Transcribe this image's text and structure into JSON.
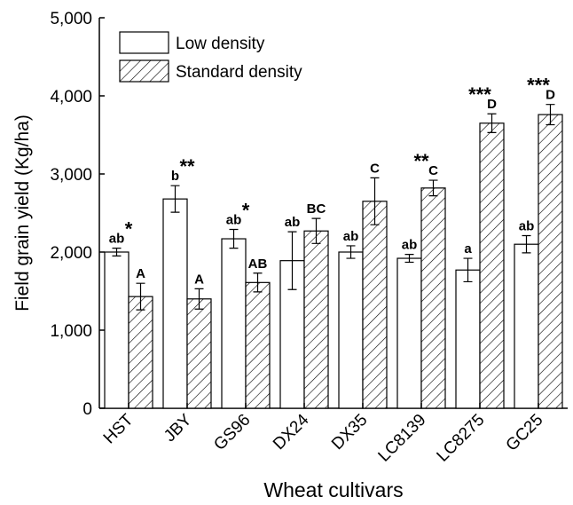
{
  "chart_data": {
    "type": "bar",
    "y_label": "Field grain yield (Kg/ha)",
    "x_label": "Wheat cultivars",
    "categories": [
      "HST",
      "JBY",
      "GS96",
      "DX24",
      "DX35",
      "LC8139",
      "LC8275",
      "GC25"
    ],
    "series": [
      {
        "name": "Low density",
        "color": "#ffffff",
        "hatch": false,
        "values": [
          2000,
          2680,
          2170,
          1890,
          2000,
          1920,
          1770,
          2100
        ],
        "errors": [
          50,
          170,
          120,
          370,
          80,
          50,
          150,
          110
        ],
        "letters": [
          "ab",
          "b",
          "ab",
          "ab",
          "ab",
          "ab",
          "a",
          "ab"
        ]
      },
      {
        "name": "Standard density",
        "color": "#ffffff",
        "hatch": true,
        "values": [
          1430,
          1400,
          1610,
          2270,
          2650,
          2820,
          3650,
          3760
        ],
        "errors": [
          170,
          130,
          120,
          160,
          300,
          100,
          120,
          130
        ],
        "letters": [
          "A",
          "A",
          "AB",
          "BC",
          "C",
          "C",
          "D",
          "D"
        ]
      }
    ],
    "significance": [
      "*",
      "**",
      "*",
      null,
      null,
      "**",
      "***",
      "***"
    ],
    "ylim": [
      0,
      5000
    ],
    "yticks": [
      0,
      {
        "value": 1000,
        "label": "1,000"
      },
      {
        "value": 2000,
        "label": "2,000"
      },
      {
        "value": 3000,
        "label": "3,000"
      },
      {
        "value": 4000,
        "label": "4,000"
      },
      {
        "value": 5000,
        "label": "5,000"
      }
    ],
    "legend": "top-left",
    "grid": false
  }
}
